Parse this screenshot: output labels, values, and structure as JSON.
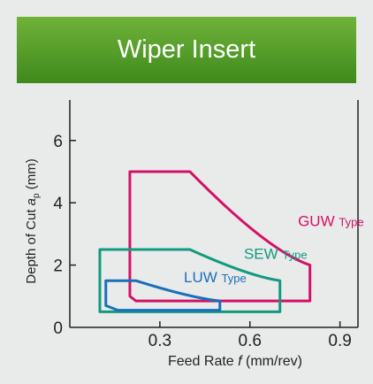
{
  "banner": {
    "title": "Wiper Insert"
  },
  "chart_data": {
    "type": "area",
    "xlabel_prefix": "Feed Rate ",
    "xlabel_var": "f",
    "xlabel_suffix": " (mm/rev)",
    "ylabel_prefix": "Depth of Cut ",
    "ylabel_var": "a",
    "ylabel_sub": "p",
    "ylabel_suffix": " (mm)",
    "xlim": [
      0.0,
      0.96
    ],
    "ylim": [
      0,
      7.3
    ],
    "xticks": [
      0.3,
      0.6,
      0.9
    ],
    "xtick_labels": [
      "0.3",
      "0.6",
      "0.9"
    ],
    "yticks": [
      0,
      2,
      4,
      6
    ],
    "ytick_labels": [
      "0",
      "2",
      "4",
      "6"
    ],
    "grid": false,
    "series": [
      {
        "name": "GUW",
        "suffix": "Type",
        "color": "#d21266",
        "label_at": [
          0.76,
          3.25
        ],
        "points": [
          [
            0.2,
            5.0
          ],
          [
            0.4,
            5.0
          ],
          [
            0.8,
            2.0
          ],
          [
            0.8,
            0.85
          ],
          [
            0.22,
            0.85
          ],
          [
            0.2,
            1.0
          ]
        ]
      },
      {
        "name": "SEW",
        "suffix": "Type",
        "color": "#129a7e",
        "label_at": [
          0.58,
          2.2
        ],
        "points": [
          [
            0.1,
            2.5
          ],
          [
            0.4,
            2.5
          ],
          [
            0.7,
            1.5
          ],
          [
            0.7,
            0.5
          ],
          [
            0.1,
            0.5
          ]
        ]
      },
      {
        "name": "LUW",
        "suffix": "Type",
        "color": "#1a6fba",
        "label_at": [
          0.38,
          1.45
        ],
        "points": [
          [
            0.12,
            1.5
          ],
          [
            0.22,
            1.5
          ],
          [
            0.5,
            0.85
          ],
          [
            0.5,
            0.55
          ],
          [
            0.16,
            0.55
          ],
          [
            0.12,
            0.7
          ]
        ]
      }
    ]
  }
}
